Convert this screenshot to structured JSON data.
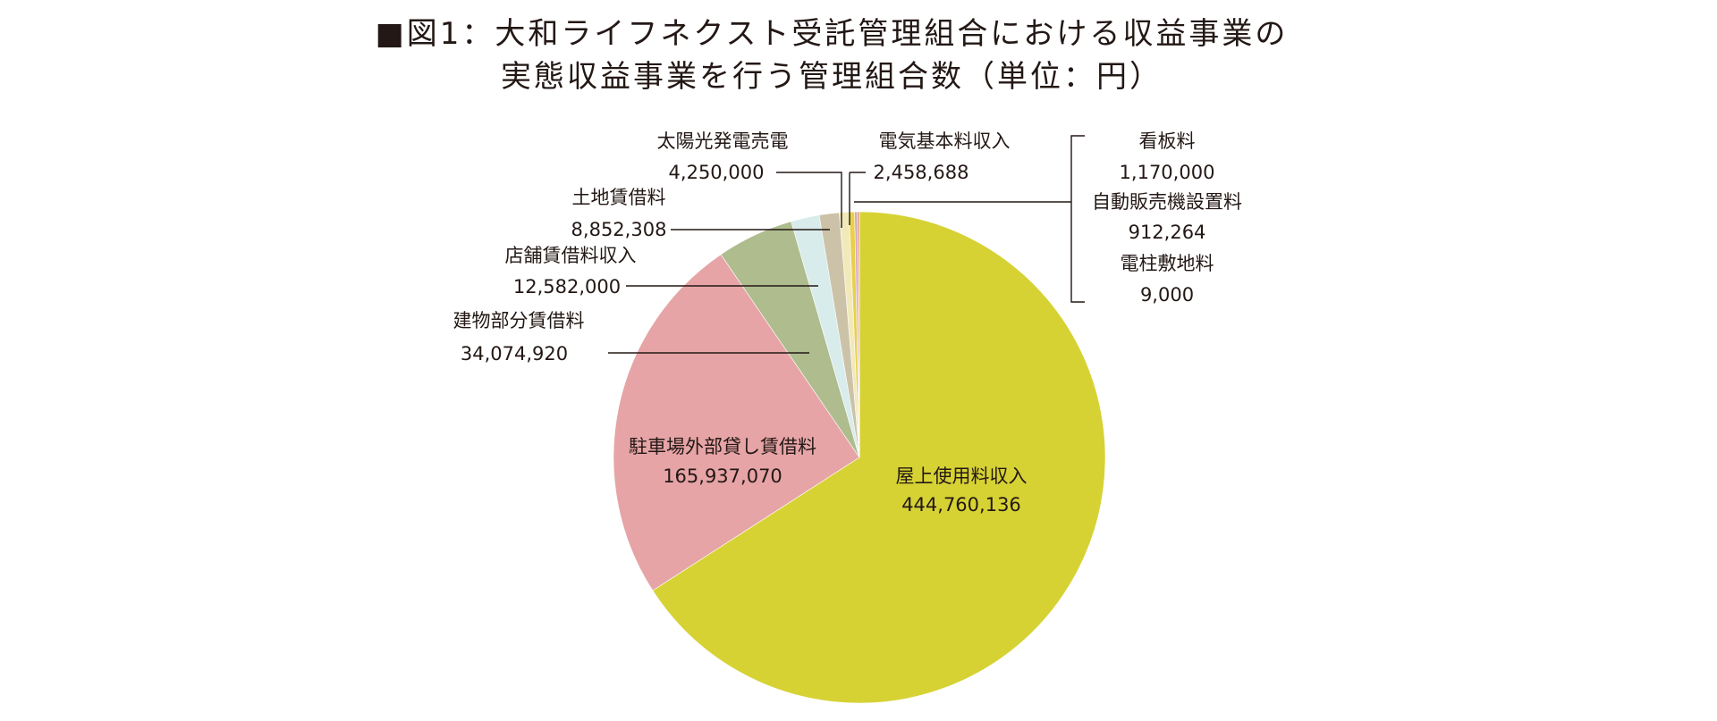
{
  "title_line1": "図1：大和ライフネクスト受託管理組合における収益事業の",
  "title_line2": "実態収益事業を行う管理組合数（単位：円）",
  "chart_data": {
    "type": "pie",
    "title": "図1：大和ライフネクスト受託管理組合における収益事業の 実態収益事業を行う管理組合数（単位：円）",
    "unit": "円",
    "slices": [
      {
        "label": "屋上使用料収入",
        "value_text": "444,760,136",
        "value": 444760136,
        "color": "#d6d234"
      },
      {
        "label": "駐車場外部貸し賃借料",
        "value_text": "165,937,070",
        "value": 165937070,
        "color": "#e6a4a6"
      },
      {
        "label": "建物部分賃借料",
        "value_text": "34,074,920",
        "value": 34074920,
        "color": "#aebc8e"
      },
      {
        "label": "店舗賃借料収入",
        "value_text": "12,582,000",
        "value": 12582000,
        "color": "#d8ecec"
      },
      {
        "label": "土地賃借料",
        "value_text": "8,852,308",
        "value": 8852308,
        "color": "#cbc2a8"
      },
      {
        "label": "太陽光発電売電",
        "value_text": "4,250,000",
        "value": 4250000,
        "color": "#f2e9ba"
      },
      {
        "label": "電気基本料収入",
        "value_text": "2,458,688",
        "value": 2458688,
        "color": "#e8d04a"
      },
      {
        "label": "看板料",
        "value_text": "1,170,000",
        "value": 1170000,
        "color": "#cfa6c2"
      },
      {
        "label": "自動販売機設置料",
        "value_text": "912,264",
        "value": 912264,
        "color": "#e39a6e"
      },
      {
        "label": "電柱敷地料",
        "value_text": "9,000",
        "value": 9000,
        "color": "#b0b0b0"
      }
    ]
  }
}
